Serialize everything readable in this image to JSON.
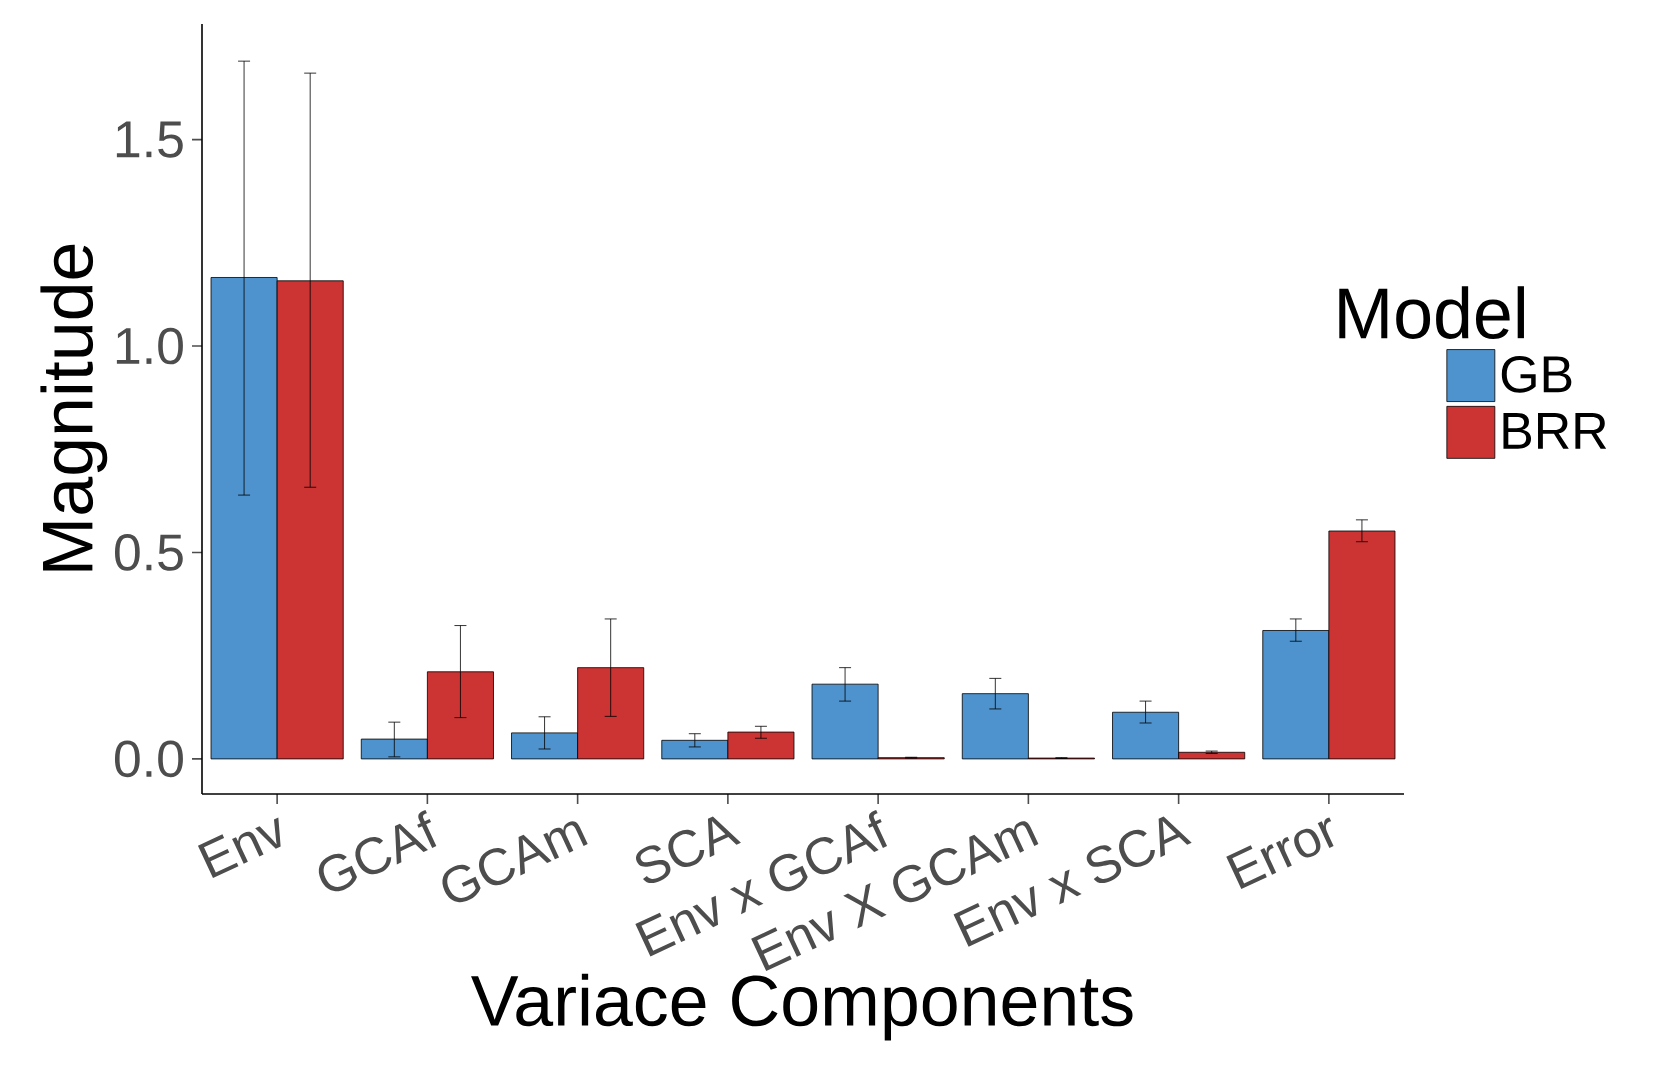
{
  "chart_data": {
    "type": "bar",
    "xlabel": "Variace Components",
    "ylabel": "Magnitude",
    "legend_title": "Model",
    "categories": [
      "Env",
      "GCAf",
      "GCAm",
      "SCA",
      "Env x GCAf",
      "Env X GCAm",
      "Env x SCA",
      "Error"
    ],
    "series": [
      {
        "name": "GB",
        "color": "#4e93cd",
        "values": [
          1.166,
          0.048,
          0.063,
          0.045,
          0.181,
          0.158,
          0.113,
          0.311
        ],
        "errors": [
          [
            0.639,
            1.69
          ],
          [
            0.005,
            0.089
          ],
          [
            0.024,
            0.102
          ],
          [
            0.029,
            0.061
          ],
          [
            0.14,
            0.221
          ],
          [
            0.121,
            0.195
          ],
          [
            0.087,
            0.14
          ],
          [
            0.285,
            0.339
          ]
        ]
      },
      {
        "name": "BRR",
        "color": "#cc3333",
        "values": [
          1.158,
          0.211,
          0.221,
          0.065,
          0.003,
          0.002,
          0.016,
          0.552
        ],
        "errors": [
          [
            0.658,
            1.661
          ],
          [
            0.1,
            0.323
          ],
          [
            0.103,
            0.339
          ],
          [
            0.05,
            0.079
          ],
          [
            0.002,
            0.004
          ],
          [
            0.001,
            0.003
          ],
          [
            0.013,
            0.019
          ],
          [
            0.526,
            0.579
          ]
        ]
      }
    ],
    "ylim": [
      -0.085,
      1.78
    ],
    "yticks": [
      {
        "value": 0,
        "label": "0.0"
      },
      {
        "value": 0.5,
        "label": "0.5"
      },
      {
        "value": 1.0,
        "label": "1.0"
      },
      {
        "value": 1.5,
        "label": "1.5"
      }
    ],
    "grid": false,
    "legend": "right"
  }
}
